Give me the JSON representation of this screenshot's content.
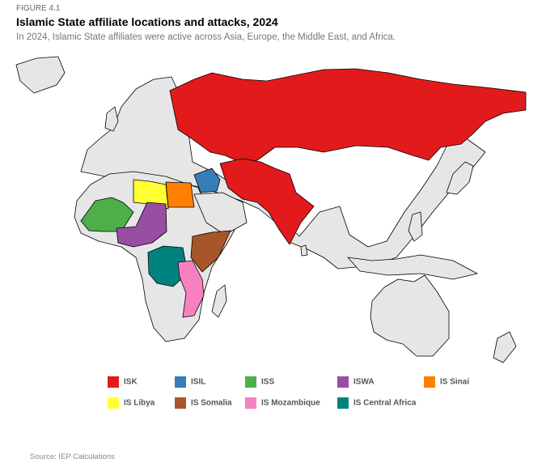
{
  "figure": "FIGURE 4.1",
  "title": "Islamic State affiliate locations and attacks, 2024",
  "subtitle": "In 2024, Islamic State affiliates were active across Asia, Europe, the Middle East, and Africa.",
  "legend": [
    {
      "name": "ISK",
      "color": "#e31a1c"
    },
    {
      "name": "ISIL",
      "color": "#377eb8"
    },
    {
      "name": "ISS",
      "color": "#4daf4a"
    },
    {
      "name": "ISWA",
      "color": "#984ea3"
    },
    {
      "name": "IS Sinai",
      "color": "#ff7f00"
    },
    {
      "name": "IS Libya",
      "color": "#ffff33"
    },
    {
      "name": "IS Somalia",
      "color": "#a65628"
    },
    {
      "name": "IS Mozambique",
      "color": "#f781bf"
    },
    {
      "name": "IS Central Africa",
      "color": "#00827f"
    }
  ],
  "source": "Source: IEP Calculations"
}
